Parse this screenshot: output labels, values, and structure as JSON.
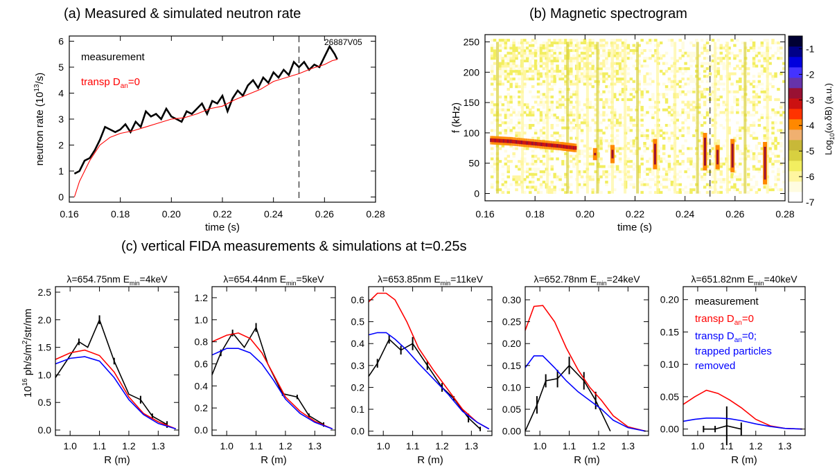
{
  "figure": {
    "title_a": "(a) Measured & simulated neutron rate",
    "title_b": "(b) Magnetic spectrogram",
    "title_c": "(c) vertical FIDA measurements & simulations at t=0.25s"
  },
  "colors": {
    "measurement": "#000000",
    "transp": "#ff0000",
    "transp_no_trapped": "#0000ff"
  },
  "chart_data": [
    {
      "type": "line",
      "id": "a",
      "title": "(a) Measured & simulated neutron rate",
      "xlabel": "time (s)",
      "ylabel": "neutron rate (10^13/s)",
      "xlim": [
        0.16,
        0.28
      ],
      "ylim": [
        0,
        6
      ],
      "xticks": [
        "0.16",
        "0.18",
        "0.20",
        "0.22",
        "0.24",
        "0.26",
        "0.28"
      ],
      "yticks": [
        "0",
        "1",
        "2",
        "3",
        "4",
        "5",
        "6"
      ],
      "annotation": "26887V05",
      "legend": [
        "measurement",
        "transp D_an=0"
      ],
      "vline": 0.25,
      "series": [
        {
          "name": "measurement",
          "color": "#000000",
          "x": [
            0.162,
            0.164,
            0.166,
            0.168,
            0.17,
            0.172,
            0.174,
            0.176,
            0.178,
            0.18,
            0.182,
            0.184,
            0.186,
            0.188,
            0.19,
            0.192,
            0.194,
            0.196,
            0.198,
            0.2,
            0.202,
            0.204,
            0.206,
            0.208,
            0.21,
            0.212,
            0.214,
            0.216,
            0.218,
            0.22,
            0.222,
            0.224,
            0.226,
            0.228,
            0.23,
            0.232,
            0.234,
            0.236,
            0.238,
            0.24,
            0.242,
            0.244,
            0.246,
            0.248,
            0.25,
            0.252,
            0.254,
            0.256,
            0.258,
            0.26,
            0.262,
            0.264,
            0.265
          ],
          "y": [
            0.9,
            1.0,
            1.4,
            1.5,
            1.8,
            2.2,
            2.7,
            2.6,
            2.5,
            2.6,
            2.8,
            2.5,
            2.9,
            2.7,
            3.3,
            3.1,
            3.2,
            3.0,
            3.4,
            3.1,
            3.0,
            2.9,
            3.3,
            3.2,
            3.4,
            3.6,
            3.2,
            3.7,
            3.6,
            3.9,
            3.3,
            3.8,
            4.1,
            3.9,
            4.3,
            4.5,
            4.2,
            4.6,
            4.4,
            4.8,
            4.6,
            4.9,
            4.7,
            5.2,
            5.0,
            5.2,
            4.9,
            5.1,
            5.0,
            5.4,
            5.8,
            5.5,
            5.3
          ]
        },
        {
          "name": "transp D_an=0",
          "color": "#ff0000",
          "x": [
            0.162,
            0.164,
            0.166,
            0.168,
            0.17,
            0.172,
            0.176,
            0.18,
            0.185,
            0.19,
            0.195,
            0.2,
            0.205,
            0.21,
            0.215,
            0.22,
            0.225,
            0.23,
            0.235,
            0.24,
            0.245,
            0.25,
            0.255,
            0.26,
            0.263,
            0.265
          ],
          "y": [
            0.0,
            0.6,
            1.0,
            1.4,
            1.7,
            2.0,
            2.3,
            2.45,
            2.55,
            2.7,
            2.85,
            3.0,
            3.05,
            3.2,
            3.4,
            3.5,
            3.75,
            3.95,
            4.15,
            4.45,
            4.6,
            4.75,
            4.95,
            5.1,
            5.25,
            5.3
          ]
        }
      ]
    },
    {
      "type": "heatmap",
      "id": "b",
      "title": "(b) Magnetic spectrogram",
      "xlabel": "time (s)",
      "ylabel": "f (kHz)",
      "xlim": [
        0.16,
        0.28
      ],
      "ylim": [
        0,
        260
      ],
      "xticks": [
        "0.16",
        "0.18",
        "0.20",
        "0.22",
        "0.24",
        "0.26",
        "0.28"
      ],
      "yticks": [
        "0",
        "50",
        "100",
        "150",
        "200",
        "250"
      ],
      "vline": 0.25,
      "colorbar": {
        "label": "Log10(ω.δB) (a.u.)",
        "ticks": [
          "-1",
          "-2",
          "-3",
          "-4",
          "-5",
          "-6",
          "-7"
        ],
        "range": [
          -7,
          -0.5
        ],
        "colors": [
          "#ffffff",
          "#fffce0",
          "#fff6a0",
          "#f2ee60",
          "#d8d040",
          "#c8b838",
          "#f0b070",
          "#ff8800",
          "#ff3300",
          "#cc1111",
          "#991133",
          "#6633aa",
          "#4433ff",
          "#0000dd",
          "#000088",
          "#000033"
        ]
      },
      "features": {
        "main_mode": {
          "t": [
            0.162,
            0.17,
            0.18,
            0.19,
            0.196
          ],
          "f": [
            88,
            86,
            82,
            78,
            75
          ]
        },
        "chirps": [
          {
            "t": 0.204,
            "f": [
              55,
              75
            ]
          },
          {
            "t": 0.211,
            "f": [
              50,
              80
            ]
          },
          {
            "t": 0.228,
            "f": [
              40,
              90
            ]
          },
          {
            "t": 0.248,
            "f": [
              38,
              100
            ]
          },
          {
            "t": 0.253,
            "f": [
              40,
              80
            ]
          },
          {
            "t": 0.259,
            "f": [
              35,
              90
            ]
          },
          {
            "t": 0.272,
            "f": [
              15,
              85
            ]
          }
        ],
        "vertical_bands": [
          0.165,
          0.175,
          0.185,
          0.193,
          0.197,
          0.201,
          0.205,
          0.211,
          0.216,
          0.221,
          0.229,
          0.236,
          0.245,
          0.252,
          0.257,
          0.264,
          0.273
        ]
      }
    },
    {
      "type": "line",
      "id": "c1",
      "title": "λ=654.75nm E_min=4keV",
      "xlabel": "R (m)",
      "ylabel": "10^16 ph/s/m^2/str/nm",
      "xlim": [
        0.95,
        1.37
      ],
      "ylim": [
        -0.1,
        2.6
      ],
      "xticks": [
        1.0,
        1.1,
        1.2,
        1.3
      ],
      "yticks": [
        0.0,
        0.5,
        1.0,
        1.5,
        2.0,
        2.5
      ],
      "series": [
        {
          "name": "measurement",
          "color": "#000000",
          "x": [
            0.95,
            1.0,
            1.03,
            1.06,
            1.1,
            1.15,
            1.2,
            1.24,
            1.28,
            1.33
          ],
          "y": [
            0.95,
            1.35,
            1.6,
            1.5,
            2.0,
            1.25,
            0.65,
            0.55,
            0.25,
            0.1
          ],
          "err": [
            0.0,
            0.0,
            0.06,
            0.0,
            0.08,
            0.06,
            0.0,
            0.07,
            0.05,
            0.06
          ]
        },
        {
          "name": "transp D_an=0",
          "color": "#ff0000",
          "x": [
            0.95,
            1.0,
            1.05,
            1.1,
            1.15,
            1.2,
            1.25,
            1.3,
            1.36
          ],
          "y": [
            1.28,
            1.4,
            1.45,
            1.35,
            1.05,
            0.6,
            0.3,
            0.15,
            0.02
          ]
        },
        {
          "name": "transp D_an=0; trapped particles removed",
          "color": "#0000ff",
          "x": [
            0.95,
            1.0,
            1.05,
            1.1,
            1.15,
            1.2,
            1.25,
            1.3,
            1.36
          ],
          "y": [
            1.2,
            1.3,
            1.33,
            1.25,
            0.95,
            0.55,
            0.28,
            0.12,
            0.02
          ]
        }
      ]
    },
    {
      "type": "line",
      "id": "c2",
      "title": "λ=654.44nm E_min=5keV",
      "xlabel": "R (m)",
      "ylabel": "",
      "xlim": [
        0.95,
        1.37
      ],
      "ylim": [
        -0.05,
        1.3
      ],
      "xticks": [
        1.0,
        1.1,
        1.2,
        1.3
      ],
      "yticks": [
        0.0,
        0.2,
        0.4,
        0.6,
        0.8,
        1.0,
        1.2
      ],
      "series": [
        {
          "name": "measurement",
          "color": "#000000",
          "x": [
            0.95,
            0.98,
            1.02,
            1.06,
            1.1,
            1.14,
            1.19,
            1.24,
            1.28,
            1.33
          ],
          "y": [
            0.5,
            0.7,
            0.88,
            0.75,
            0.93,
            0.6,
            0.33,
            0.3,
            0.13,
            0.05
          ],
          "err": [
            0.0,
            0.03,
            0.03,
            0.0,
            0.04,
            0.0,
            0.02,
            0.02,
            0.02,
            0.02
          ]
        },
        {
          "name": "transp D_an=0",
          "color": "#ff0000",
          "x": [
            0.95,
            1.0,
            1.04,
            1.08,
            1.12,
            1.16,
            1.2,
            1.25,
            1.3,
            1.36
          ],
          "y": [
            0.8,
            0.86,
            0.88,
            0.83,
            0.7,
            0.5,
            0.3,
            0.17,
            0.08,
            0.01
          ]
        },
        {
          "name": "transp D_an=0; trapped particles removed",
          "color": "#0000ff",
          "x": [
            0.95,
            1.0,
            1.04,
            1.08,
            1.12,
            1.16,
            1.2,
            1.25,
            1.3,
            1.36
          ],
          "y": [
            0.68,
            0.74,
            0.74,
            0.7,
            0.6,
            0.45,
            0.28,
            0.15,
            0.07,
            0.01
          ]
        }
      ]
    },
    {
      "type": "line",
      "id": "c3",
      "title": "λ=653.85nm E_min=11keV",
      "xlabel": "R (m)",
      "ylabel": "",
      "xlim": [
        0.95,
        1.37
      ],
      "ylim": [
        -0.02,
        0.66
      ],
      "xticks": [
        1.0,
        1.1,
        1.2,
        1.3
      ],
      "yticks": [
        0.0,
        0.1,
        0.2,
        0.3,
        0.4,
        0.5,
        0.6
      ],
      "series": [
        {
          "name": "measurement",
          "color": "#000000",
          "x": [
            0.95,
            0.98,
            1.02,
            1.06,
            1.1,
            1.15,
            1.2,
            1.24,
            1.29,
            1.33
          ],
          "y": [
            0.25,
            0.31,
            0.42,
            0.37,
            0.4,
            0.3,
            0.2,
            0.15,
            0.06,
            0.01
          ],
          "err": [
            0.0,
            0.02,
            0.02,
            0.02,
            0.03,
            0.02,
            0.02,
            0.01,
            0.02,
            0.01
          ]
        },
        {
          "name": "transp D_an=0",
          "color": "#ff0000",
          "x": [
            0.95,
            0.98,
            1.01,
            1.04,
            1.08,
            1.12,
            1.17,
            1.22,
            1.27,
            1.32,
            1.36
          ],
          "y": [
            0.59,
            0.63,
            0.63,
            0.6,
            0.5,
            0.38,
            0.28,
            0.19,
            0.1,
            0.04,
            0.01
          ]
        },
        {
          "name": "transp D_an=0; trapped particles removed",
          "color": "#0000ff",
          "x": [
            0.95,
            0.98,
            1.01,
            1.04,
            1.08,
            1.12,
            1.17,
            1.22,
            1.27,
            1.32,
            1.36
          ],
          "y": [
            0.44,
            0.45,
            0.45,
            0.42,
            0.37,
            0.31,
            0.24,
            0.17,
            0.09,
            0.04,
            0.01
          ]
        }
      ]
    },
    {
      "type": "line",
      "id": "c4",
      "title": "λ=652.78nm E_min=24keV",
      "xlabel": "R (m)",
      "ylabel": "",
      "xlim": [
        0.95,
        1.37
      ],
      "ylim": [
        -0.01,
        0.33
      ],
      "xticks": [
        1.0,
        1.1,
        1.2,
        1.3
      ],
      "yticks": [
        0.0,
        0.05,
        0.1,
        0.15,
        0.2,
        0.25,
        0.3
      ],
      "series": [
        {
          "name": "measurement",
          "color": "#000000",
          "x": [
            0.95,
            0.99,
            1.02,
            1.06,
            1.1,
            1.15,
            1.19,
            1.24
          ],
          "y": [
            0.0,
            0.06,
            0.115,
            0.12,
            0.15,
            0.115,
            0.07,
            0.0
          ],
          "err": [
            0.0,
            0.02,
            0.015,
            0.02,
            0.02,
            0.02,
            0.02,
            0.0
          ]
        },
        {
          "name": "transp D_an=0",
          "color": "#ff0000",
          "x": [
            0.95,
            0.98,
            1.01,
            1.05,
            1.09,
            1.13,
            1.17,
            1.21,
            1.25,
            1.3,
            1.36
          ],
          "y": [
            0.23,
            0.285,
            0.287,
            0.25,
            0.19,
            0.14,
            0.1,
            0.07,
            0.035,
            0.01,
            0.0
          ]
        },
        {
          "name": "transp D_an=0; trapped particles removed",
          "color": "#0000ff",
          "x": [
            0.95,
            0.98,
            1.01,
            1.05,
            1.09,
            1.13,
            1.17,
            1.21,
            1.25,
            1.3,
            1.36
          ],
          "y": [
            0.145,
            0.172,
            0.172,
            0.145,
            0.115,
            0.09,
            0.07,
            0.05,
            0.025,
            0.008,
            0.0
          ]
        }
      ]
    },
    {
      "type": "line",
      "id": "c5",
      "title": "λ=651.82nm E_min=40keV",
      "xlabel": "R (m)",
      "ylabel": "",
      "xlim": [
        0.95,
        1.37
      ],
      "ylim": [
        -0.01,
        0.22
      ],
      "xticks": [
        1.0,
        1.1,
        1.2,
        1.3
      ],
      "yticks": [
        0.0,
        0.05,
        0.1,
        0.15,
        0.2
      ],
      "legend": [
        "measurement",
        "transp D_an=0",
        "transp D_an=0; trapped particles removed"
      ],
      "series": [
        {
          "name": "measurement",
          "color": "#000000",
          "x": [
            1.02,
            1.06,
            1.1,
            1.15
          ],
          "y": [
            0.0,
            0.0,
            0.005,
            0.0
          ],
          "err": [
            0.005,
            0.005,
            0.03,
            0.01
          ]
        },
        {
          "name": "transp D_an=0",
          "color": "#ff0000",
          "x": [
            0.95,
            0.99,
            1.03,
            1.07,
            1.11,
            1.15,
            1.2,
            1.25,
            1.3,
            1.36
          ],
          "y": [
            0.038,
            0.05,
            0.06,
            0.055,
            0.045,
            0.033,
            0.015,
            0.005,
            0.001,
            0.0
          ]
        },
        {
          "name": "transp D_an=0; trapped particles removed",
          "color": "#0000ff",
          "x": [
            0.95,
            0.99,
            1.03,
            1.07,
            1.11,
            1.15,
            1.2,
            1.25,
            1.3,
            1.36
          ],
          "y": [
            0.012,
            0.015,
            0.017,
            0.017,
            0.016,
            0.013,
            0.008,
            0.004,
            0.001,
            0.0
          ]
        }
      ]
    }
  ]
}
